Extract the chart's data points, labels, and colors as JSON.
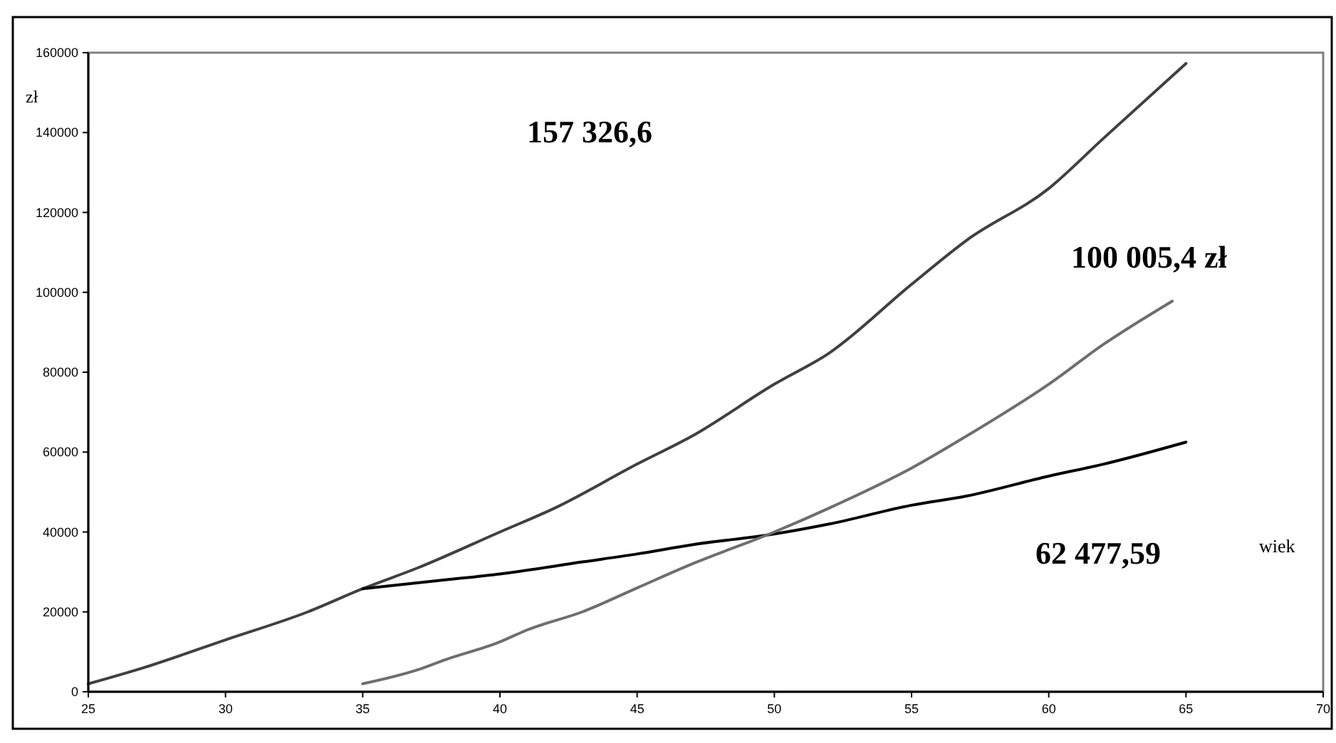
{
  "chart_data": {
    "type": "line",
    "xlabel": "wiek",
    "ylabel": "zł",
    "xlim": [
      25,
      70
    ],
    "ylim": [
      0,
      160000
    ],
    "xticks": [
      25,
      30,
      35,
      40,
      45,
      50,
      55,
      60,
      65,
      70
    ],
    "yticks": [
      0,
      20000,
      40000,
      60000,
      80000,
      100000,
      120000,
      140000,
      160000
    ],
    "grid": false,
    "marker": "none",
    "line_style": "solid",
    "series": [
      {
        "color": "#404040",
        "x": [
          25,
          27,
          30,
          33,
          35,
          37,
          40,
          42,
          45,
          47,
          50,
          52,
          55,
          57,
          60,
          62,
          65
        ],
        "values": [
          2000,
          6000,
          13000,
          20000,
          25800,
          31000,
          40000,
          46000,
          57000,
          64000,
          77000,
          84800,
          102000,
          113000,
          126000,
          138600,
          157300
        ]
      },
      {
        "color": "#000000",
        "x": [
          35,
          38,
          40,
          43,
          45,
          47,
          50,
          52,
          55,
          57,
          60,
          62,
          65
        ],
        "values": [
          25800,
          28000,
          29500,
          32500,
          34500,
          36800,
          39500,
          42000,
          46700,
          49000,
          54000,
          57000,
          62500
        ]
      },
      {
        "color": "#6e6e6e",
        "x": [
          35,
          37,
          38,
          40,
          41,
          43,
          45,
          47,
          50,
          52,
          55,
          57,
          60,
          62,
          64.5
        ],
        "values": [
          2000,
          5500,
          8000,
          12500,
          15500,
          20000,
          26000,
          32000,
          40000,
          46000,
          56000,
          64000,
          77000,
          87000,
          97800
        ]
      }
    ],
    "annotations": [
      "157 326,6",
      "100 005,4 zł",
      "62 477,59"
    ]
  }
}
